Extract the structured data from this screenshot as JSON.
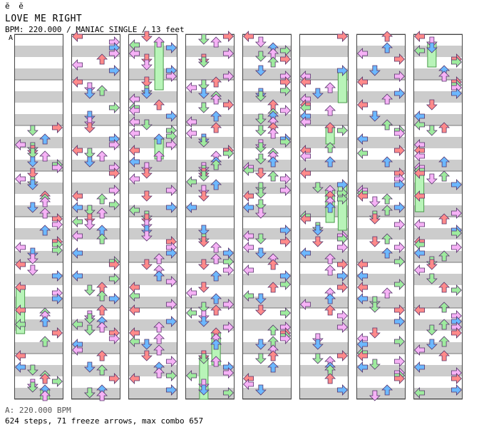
{
  "header": {
    "glyphs": "ĕ ĕ",
    "title": "LOVE ME RIGHT",
    "info": "BPM: 220.000 / MANIAC SINGLE / 13 feet",
    "marker": "A"
  },
  "footer": {
    "bpm": "A: 220.000 BPM",
    "summary": "624 steps, 71 freeze arrows, max combo 657"
  },
  "colors": {
    "stripe": "#cccccc",
    "lane_bg": "#ffffff",
    "lane_border": "#444444",
    "red": "#ff8a8a",
    "blue": "#6cb8ff",
    "pink": "#f6b2f6",
    "green": "#9eeb9e",
    "freeze": "#b8f4b8",
    "arrow_stroke": "#55336a"
  },
  "chart_data": {
    "type": "step-chart",
    "mode": "MANIAC SINGLE",
    "bpm": 220,
    "columns": 8,
    "measures_per_column": 8,
    "lanes": [
      "left",
      "down",
      "up",
      "right"
    ],
    "steps": 624,
    "freeze_arrows": 71,
    "max_combo": 657
  }
}
